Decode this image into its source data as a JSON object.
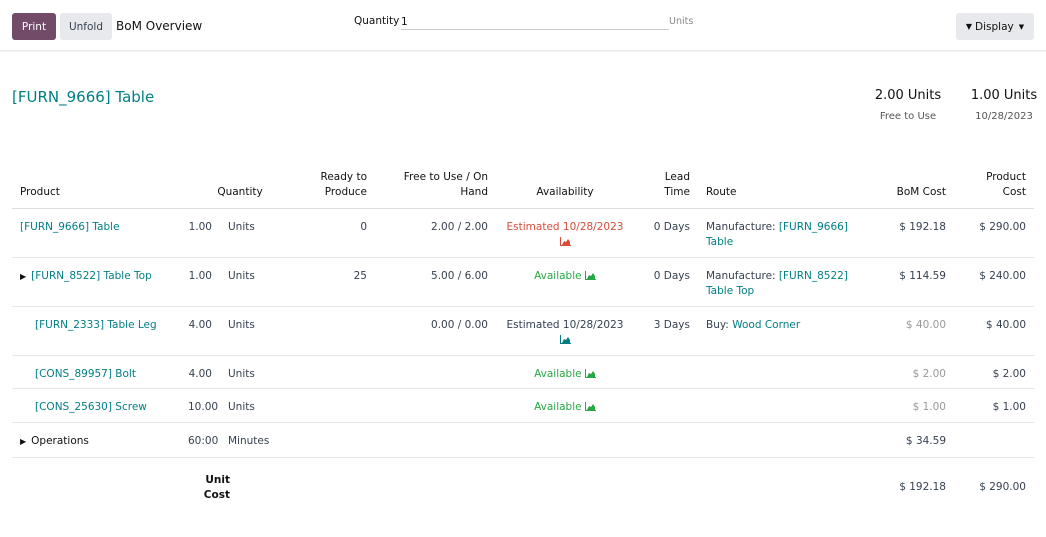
{
  "toolbar": {
    "print": "Print",
    "unfold": "Unfold",
    "title": "BoM Overview",
    "quantity_label": "Quantity",
    "quantity_value": "1",
    "quantity_unit": "Units",
    "display": "Display"
  },
  "product": {
    "title": "[FURN_9666] Table",
    "stats": [
      {
        "value": "2.00 Units",
        "label": "Free to Use"
      },
      {
        "value": "1.00 Units",
        "label": "10/28/2023"
      }
    ]
  },
  "columns": [
    "Product",
    "Quantity",
    "Ready to Produce",
    "Free to Use / On Hand",
    "Availability",
    "Lead Time",
    "Route",
    "BoM Cost",
    "Product Cost"
  ],
  "rows": [
    {
      "product": "[FURN_9666] Table",
      "qty": "1.00",
      "uom": "Units",
      "ready": "0",
      "free": "2.00 / 2.00",
      "avail": "Estimated 10/28/2023",
      "avail_status": "late",
      "lead": "0 Days",
      "route_prefix": "Manufacture:",
      "route_link": "[FURN_9666] Table",
      "bom": "$ 192.18",
      "cost": "$ 290.00"
    },
    {
      "product": "[FURN_8522] Table Top",
      "qty": "1.00",
      "uom": "Units",
      "ready": "25",
      "free": "5.00 / 6.00",
      "avail": "Available",
      "avail_status": "available",
      "lead": "0 Days",
      "route_prefix": "Manufacture:",
      "route_link": "[FURN_8522] Table Top",
      "bom": "$ 114.59",
      "cost": "$ 240.00"
    },
    {
      "product": "[FURN_2333] Table Leg",
      "qty": "4.00",
      "uom": "Units",
      "ready": "",
      "free": "0.00 / 0.00",
      "avail": "Estimated 10/28/2023",
      "avail_status": "estimated",
      "lead": "3 Days",
      "route_prefix": "Buy:",
      "route_link": "Wood Corner",
      "bom": "$ 40.00",
      "cost": "$ 40.00"
    },
    {
      "product": "[CONS_89957] Bolt",
      "qty": "4.00",
      "uom": "Units",
      "ready": "",
      "free": "",
      "avail": "Available",
      "avail_status": "available",
      "lead": "",
      "route_prefix": "",
      "route_link": "",
      "bom": "$ 2.00",
      "cost": "$ 2.00"
    },
    {
      "product": "[CONS_25630] Screw",
      "qty": "10.00",
      "uom": "Units",
      "ready": "",
      "free": "",
      "avail": "Available",
      "avail_status": "available",
      "lead": "",
      "route_prefix": "",
      "route_link": "",
      "bom": "$ 1.00",
      "cost": "$ 1.00"
    }
  ],
  "operations": {
    "label": "Operations",
    "qty": "60:00",
    "uom": "Minutes",
    "bom": "$ 34.59"
  },
  "footer": {
    "label": "Unit Cost",
    "bom": "$ 192.18",
    "cost": "$ 290.00"
  },
  "colors": {
    "accent": "#714b67",
    "link": "#017e84",
    "late": "#d44c3b",
    "available": "#28a745"
  }
}
